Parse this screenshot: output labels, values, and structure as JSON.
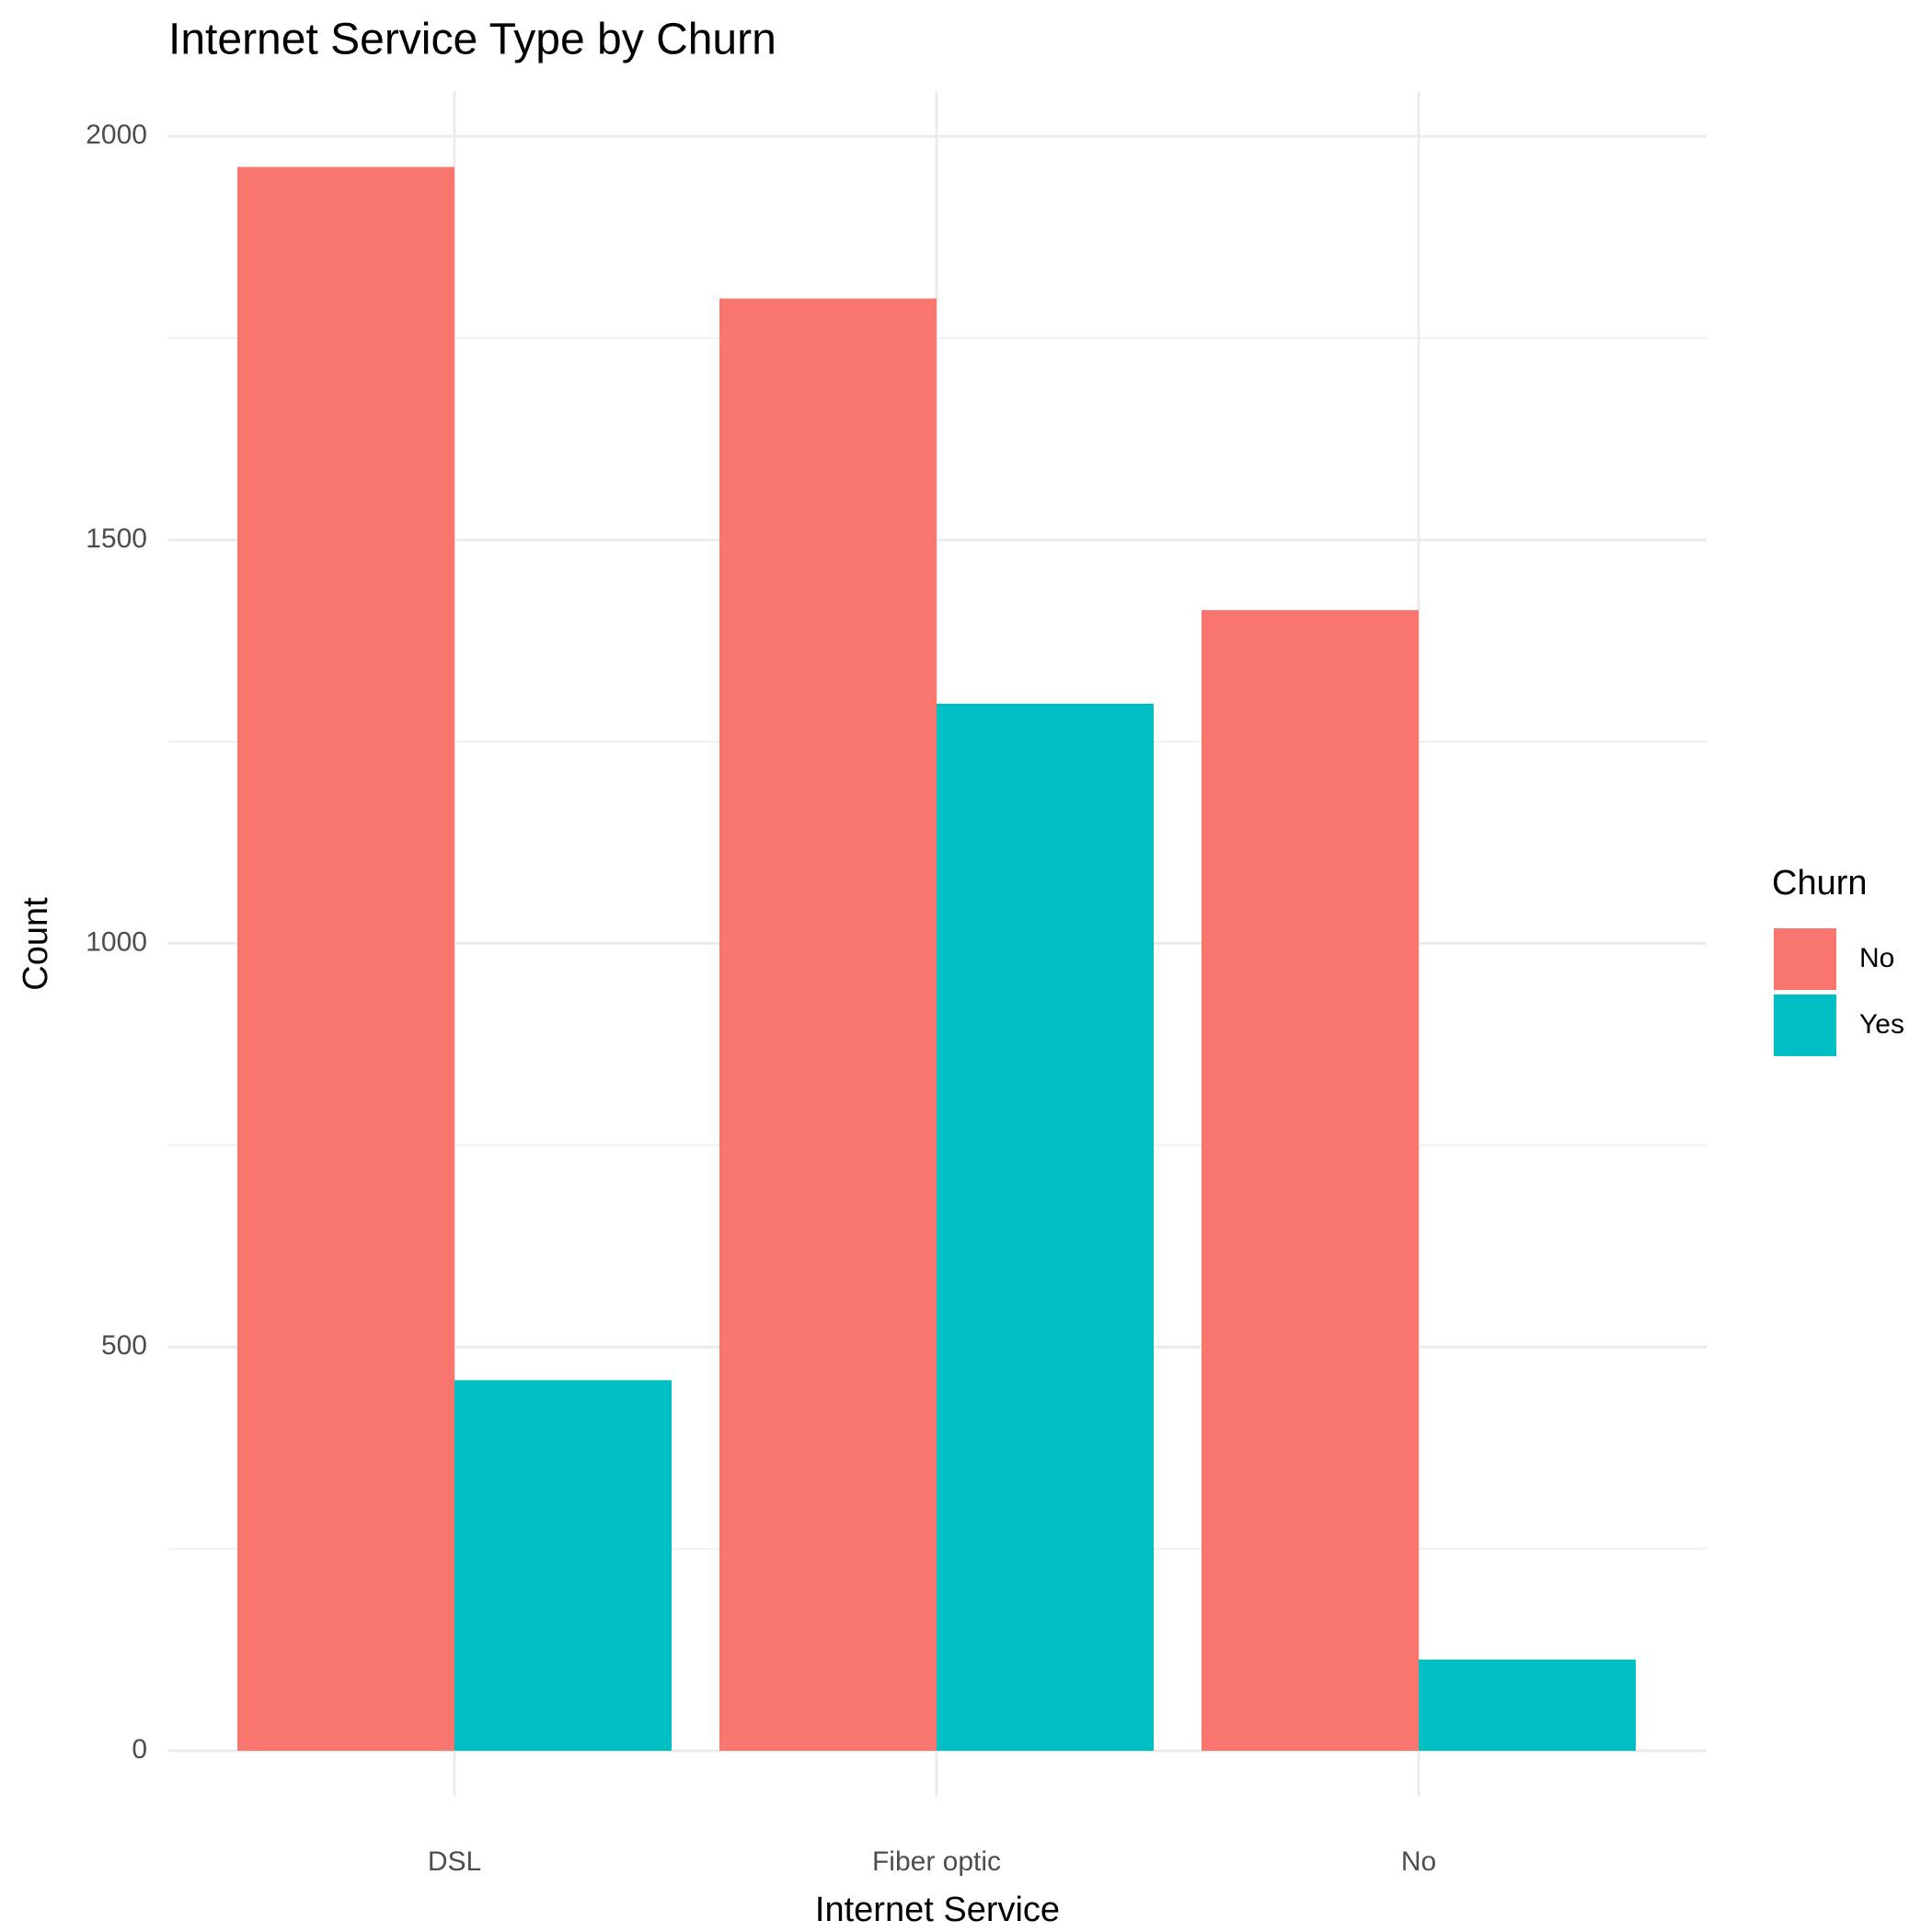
{
  "chart_data": {
    "type": "bar",
    "title": "Internet Service Type by Churn",
    "x_label": "Internet Service",
    "y_label": "Count",
    "legend_title": "Churn",
    "categories": [
      "DSL",
      "Fiber optic",
      "No"
    ],
    "series": [
      {
        "name": "No",
        "color": "#F8766D",
        "values": [
          1962,
          1799,
          1413
        ]
      },
      {
        "name": "Yes",
        "color": "#00BFC4",
        "values": [
          459,
          1297,
          113
        ]
      }
    ],
    "ylim": [
      -57,
      2056
    ],
    "yticks": [
      0,
      500,
      1000,
      1500,
      2000
    ],
    "grid": true,
    "legend": "right"
  }
}
